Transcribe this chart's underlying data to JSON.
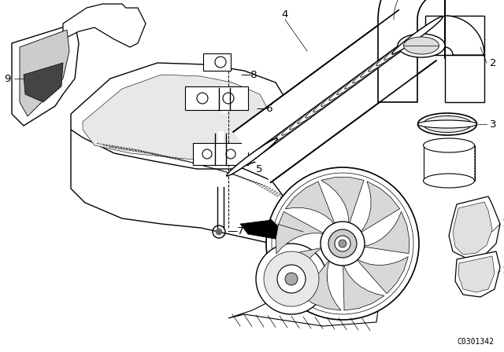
{
  "catalog_code": "C0301342",
  "background_color": "#ffffff",
  "line_color": "#000000",
  "fig_width": 6.4,
  "fig_height": 4.48,
  "dpi": 100
}
